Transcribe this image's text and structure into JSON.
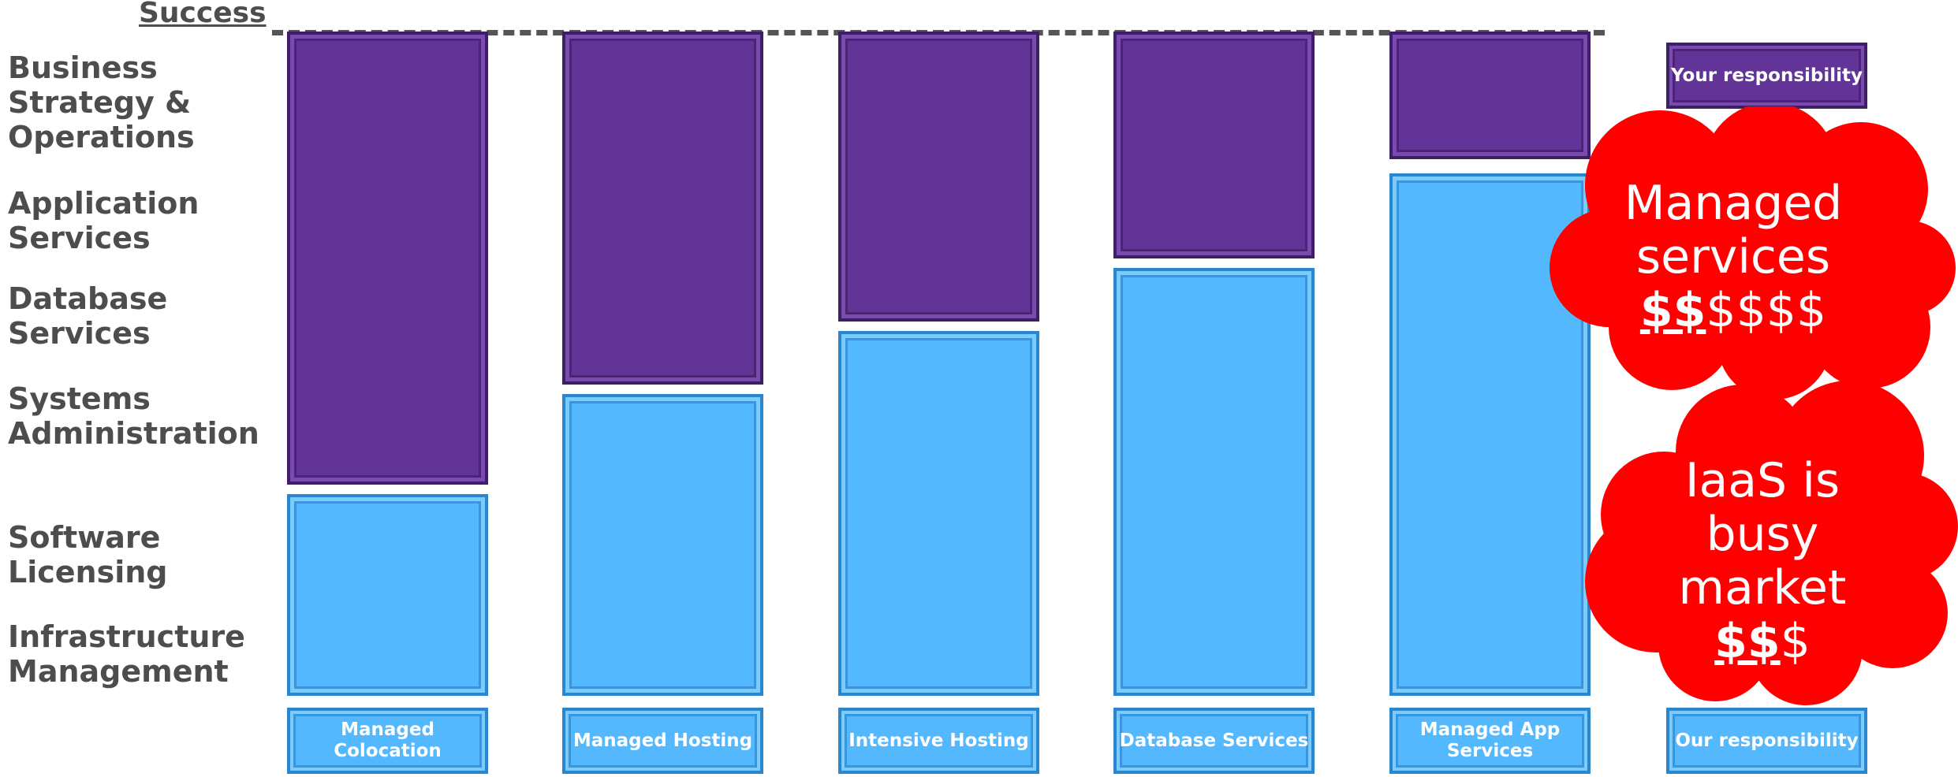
{
  "success_label": "Success",
  "row_labels": [
    "Business Strategy & Operations",
    "Application Services",
    "Database Services",
    "Systems Administration",
    "Software Licensing",
    "Infrastructure Management"
  ],
  "columns": [
    "Managed Colocation",
    "Managed Hosting",
    "Intensive Hosting",
    "Database Services",
    "Managed App Services"
  ],
  "legend": {
    "your_responsibility": "Your responsibility",
    "our_responsibility": "Our responsibility"
  },
  "callouts": {
    "managed_line1": "Managed",
    "managed_line2": "services",
    "managed_bold": "$$",
    "managed_rest": "$$$$",
    "iaas_line1": "IaaS is",
    "iaas_line2": "busy",
    "iaas_line3": "market",
    "iaas_bold": "$$",
    "iaas_rest": "$"
  },
  "colors": {
    "your_responsibility": "#633498",
    "our_responsibility": "#53b8fd",
    "callout": "#ff0000",
    "success_line": "#555555"
  }
}
